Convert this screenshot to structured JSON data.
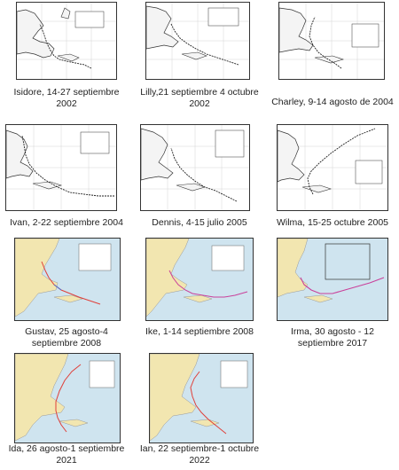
{
  "captions": [
    {
      "line1": "Isidore, 14-27 septiembre",
      "line2": "2002"
    },
    {
      "line1": "Lilly,21 septiembre 4 octubre",
      "line2": "2002"
    },
    {
      "line1": "Charley, 9-14 agosto de 2004",
      "line2": ""
    },
    {
      "line1": "Ivan, 2-22 septiembre 2004",
      "line2": ""
    },
    {
      "line1": "Dennis, 4-15 julio 2005",
      "line2": ""
    },
    {
      "line1": "Wilma, 15-25 octubre 2005",
      "line2": ""
    },
    {
      "line1": "Gustav, 25 agosto-4",
      "line2": "septiembre 2008"
    },
    {
      "line1": "Ike, 1-14 septiembre 2008",
      "line2": ""
    },
    {
      "line1": "Irma, 30 agosto - 12",
      "line2": "septiembre 2017"
    },
    {
      "line1": "Ida, 26 agosto-1 septiembre",
      "line2": "2021"
    },
    {
      "line1": "Ian, 22 septiembre-1 octubre",
      "line2": "2022"
    }
  ],
  "colors": {
    "land_grey": "#f4f4f4",
    "sea_white": "#ffffff",
    "land_color": "#f2e6b0",
    "sea_color": "#cfe4ef",
    "track_dark": "#222222",
    "track_red": "#e0403a",
    "track_blue": "#4a6fd0",
    "track_magenta": "#c9409a"
  }
}
